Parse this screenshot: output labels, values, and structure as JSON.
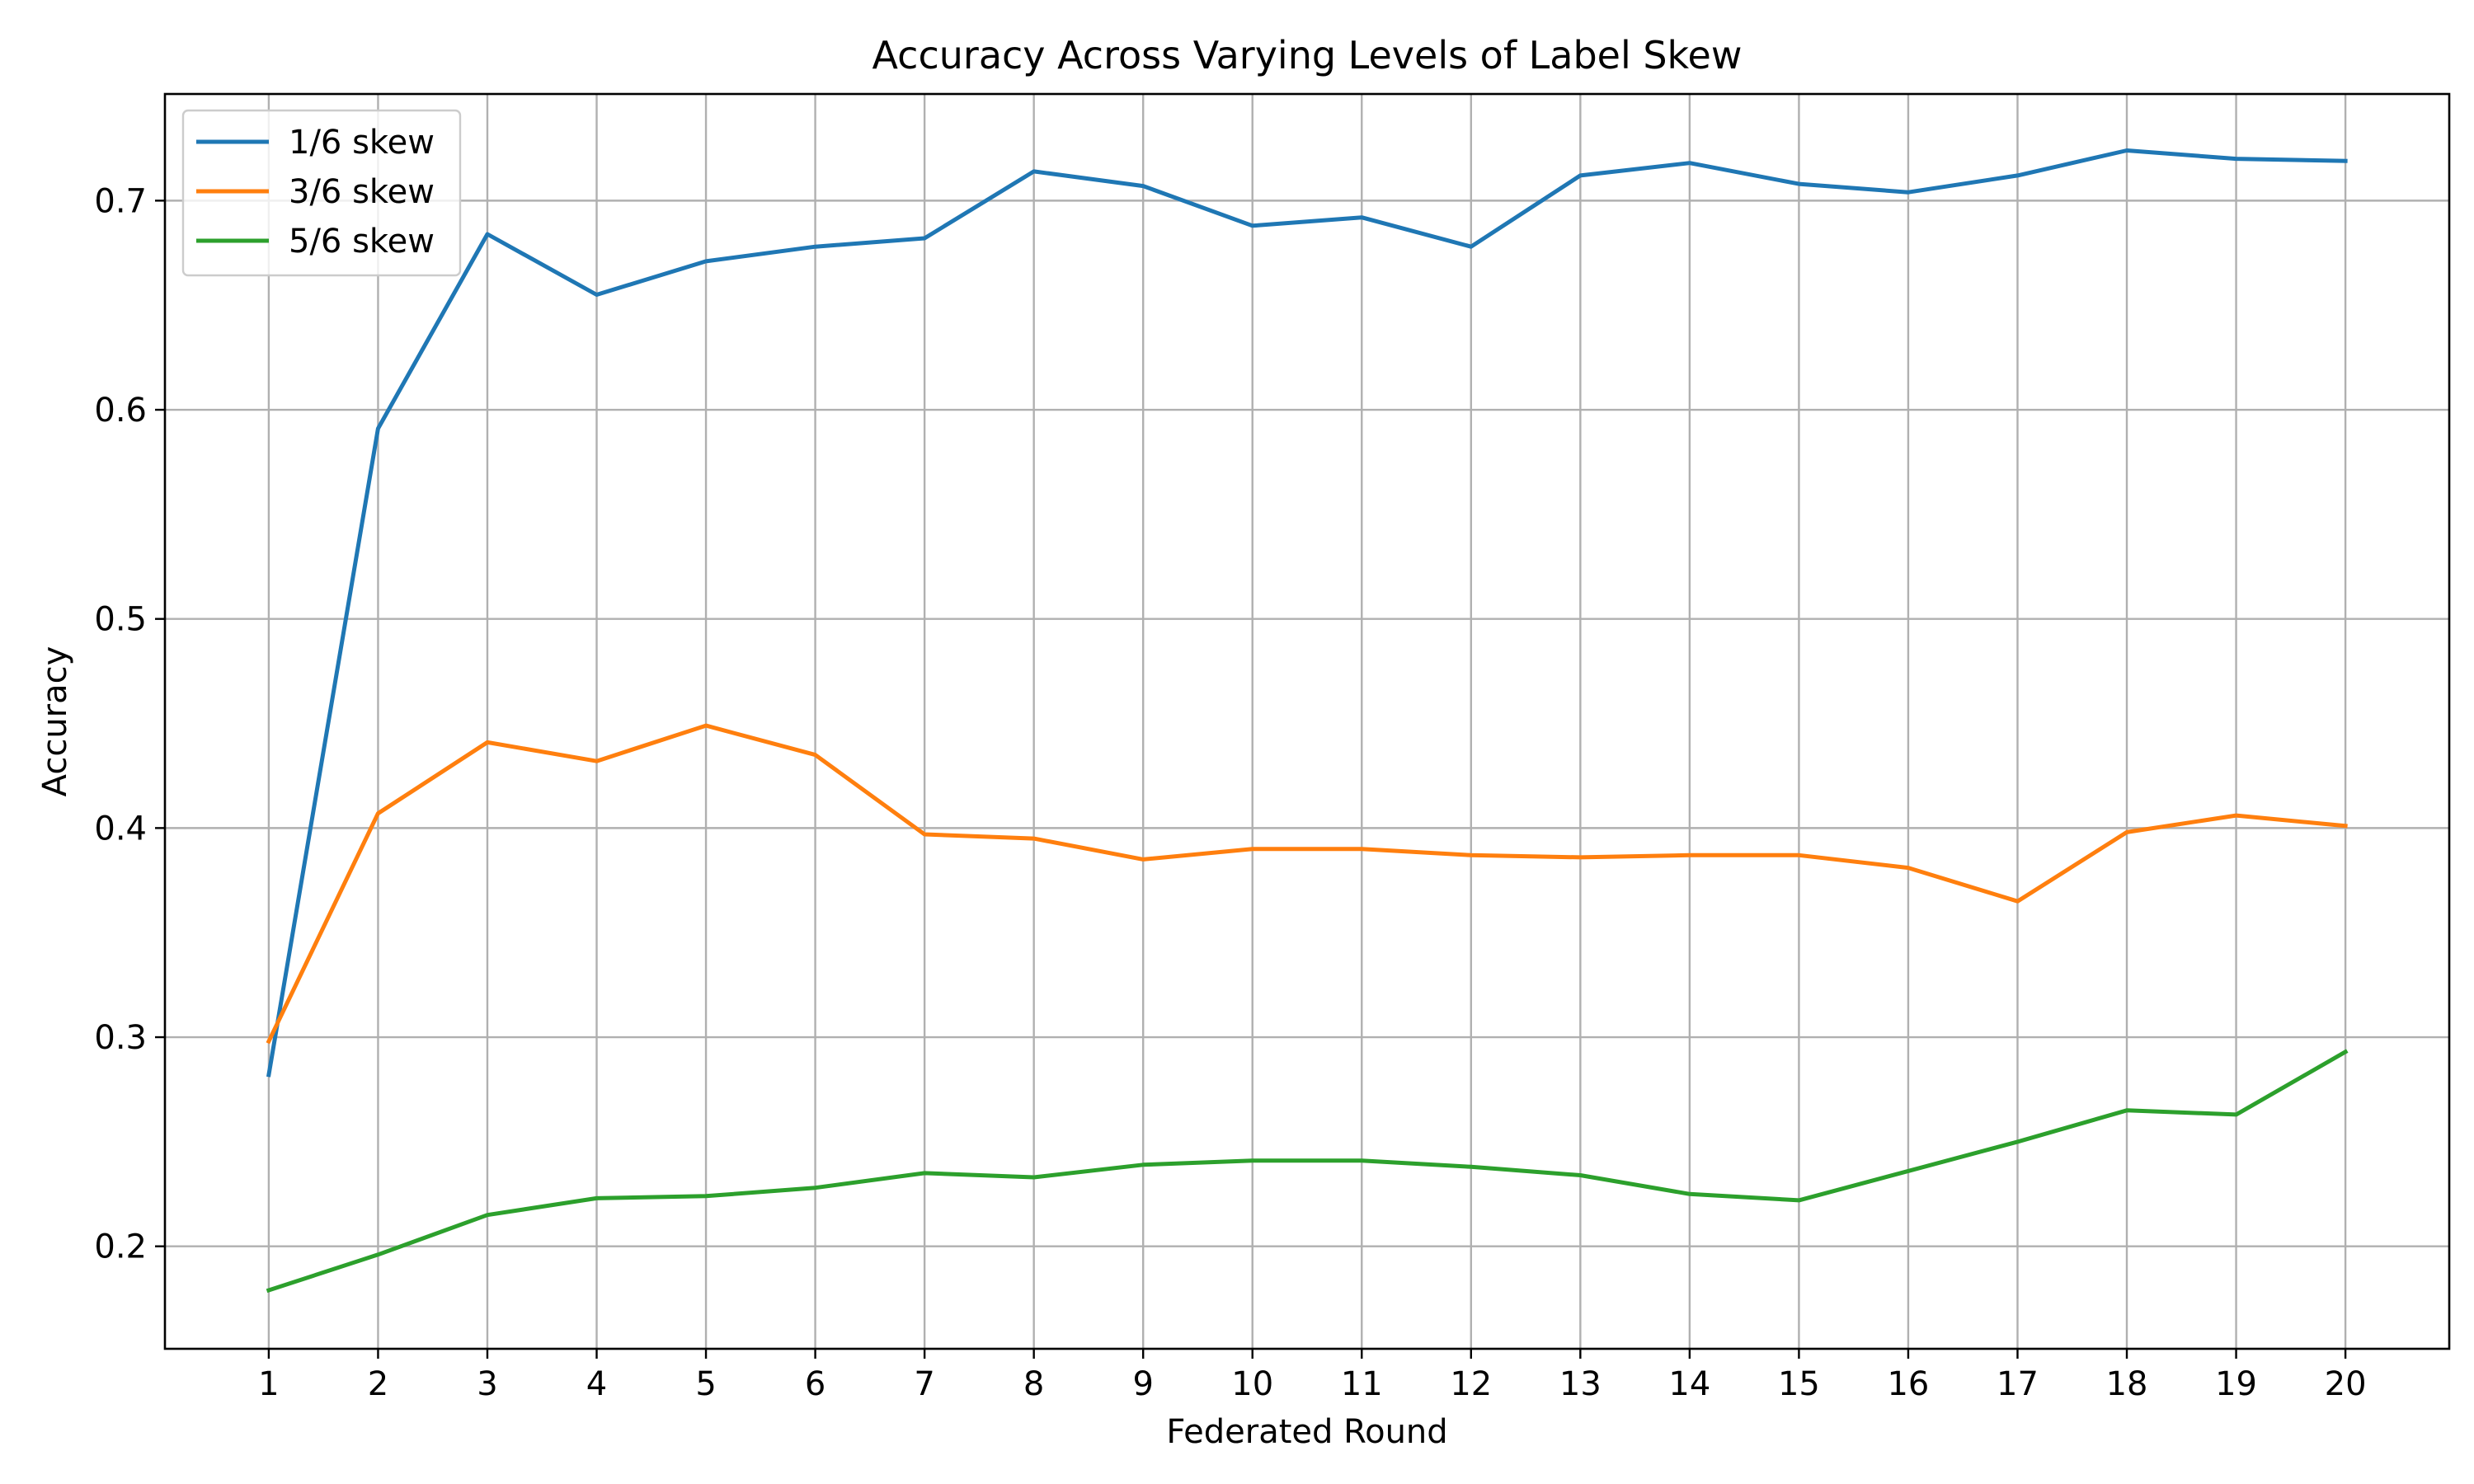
{
  "chart_data": {
    "type": "line",
    "title": "Accuracy Across Varying Levels of Label Skew",
    "xlabel": "Federated Round",
    "ylabel": "Accuracy",
    "x": [
      1,
      2,
      3,
      4,
      5,
      6,
      7,
      8,
      9,
      10,
      11,
      12,
      13,
      14,
      15,
      16,
      17,
      18,
      19,
      20
    ],
    "xlim": [
      0.05,
      20.95
    ],
    "ylim": [
      0.151,
      0.751
    ],
    "yticks": [
      0.2,
      0.3,
      0.4,
      0.5,
      0.6,
      0.7
    ],
    "ytick_labels": [
      "0.2",
      "0.3",
      "0.4",
      "0.5",
      "0.6",
      "0.7"
    ],
    "xtick_labels": [
      "1",
      "2",
      "3",
      "4",
      "5",
      "6",
      "7",
      "8",
      "9",
      "10",
      "11",
      "12",
      "13",
      "14",
      "15",
      "16",
      "17",
      "18",
      "19",
      "20"
    ],
    "grid": true,
    "legend_position": "top-left",
    "series": [
      {
        "name": "1/6 skew",
        "color": "#1f77b4",
        "values": [
          0.282,
          0.591,
          0.684,
          0.655,
          0.671,
          0.678,
          0.682,
          0.714,
          0.707,
          0.688,
          0.692,
          0.678,
          0.712,
          0.718,
          0.708,
          0.704,
          0.712,
          0.724,
          0.72,
          0.719
        ]
      },
      {
        "name": "3/6 skew",
        "color": "#ff7f0e",
        "values": [
          0.298,
          0.407,
          0.441,
          0.432,
          0.449,
          0.435,
          0.397,
          0.395,
          0.385,
          0.39,
          0.39,
          0.387,
          0.386,
          0.387,
          0.387,
          0.381,
          0.365,
          0.398,
          0.406,
          0.401
        ]
      },
      {
        "name": "5/6 skew",
        "color": "#2ca02c",
        "values": [
          0.179,
          0.196,
          0.215,
          0.223,
          0.224,
          0.228,
          0.235,
          0.233,
          0.239,
          0.241,
          0.241,
          0.238,
          0.234,
          0.225,
          0.222,
          0.236,
          0.25,
          0.265,
          0.263,
          0.293
        ]
      }
    ]
  }
}
